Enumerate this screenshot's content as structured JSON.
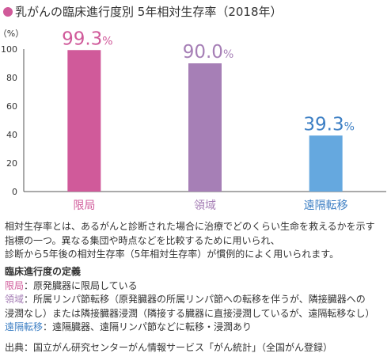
{
  "title": "乳がんの臨床進行度別 5年相対生存率（2018年）",
  "chart_data": {
    "type": "bar",
    "ylabel": "（%）",
    "ylim": [
      0,
      100
    ],
    "yticks": [
      0,
      20,
      40,
      60,
      80,
      100
    ],
    "categories": [
      "限局",
      "領域",
      "遠隔転移"
    ],
    "values": [
      99.3,
      90.0,
      39.3
    ],
    "value_labels": [
      "99.3",
      "90.0",
      "39.3"
    ],
    "value_unit": "%",
    "colors": [
      "#d05a9a",
      "#a67fb6",
      "#65a8df"
    ],
    "label_colors": [
      "#d05a9a",
      "#a67fb6",
      "#3d7fc4"
    ],
    "grid": false
  },
  "notes": {
    "description": [
      "相対生存率とは、あるがんと診断された場合に治療でどのくらい生命を救えるかを示す",
      "指標の一つ。異なる集団や時点などを比較するために用いられ、",
      "診断から5年後の相対生存率（5年相対生存率）が慣例的によく用いられます。"
    ],
    "definition_heading": "臨床進行度の定義",
    "definitions": [
      {
        "term": "限局",
        "text": "：原発臓器に限局している"
      },
      {
        "term": "領域",
        "text": "：所属リンパ節転移（原発臓器の所属リンパ節への転移を伴うが、隣接臓器への"
      },
      {
        "term": "",
        "text": "浸潤なし）または隣接臓器浸潤（隣接する臓器に直接浸潤しているが、遠隔転移なし）"
      },
      {
        "term": "遠隔転移",
        "text": "：遠隔臓器、遠隔リンパ節などに転移・浸潤あり"
      }
    ],
    "source": "出典：国立がん研究センターがん情報サービス「がん統計」（全国がん登録）"
  }
}
